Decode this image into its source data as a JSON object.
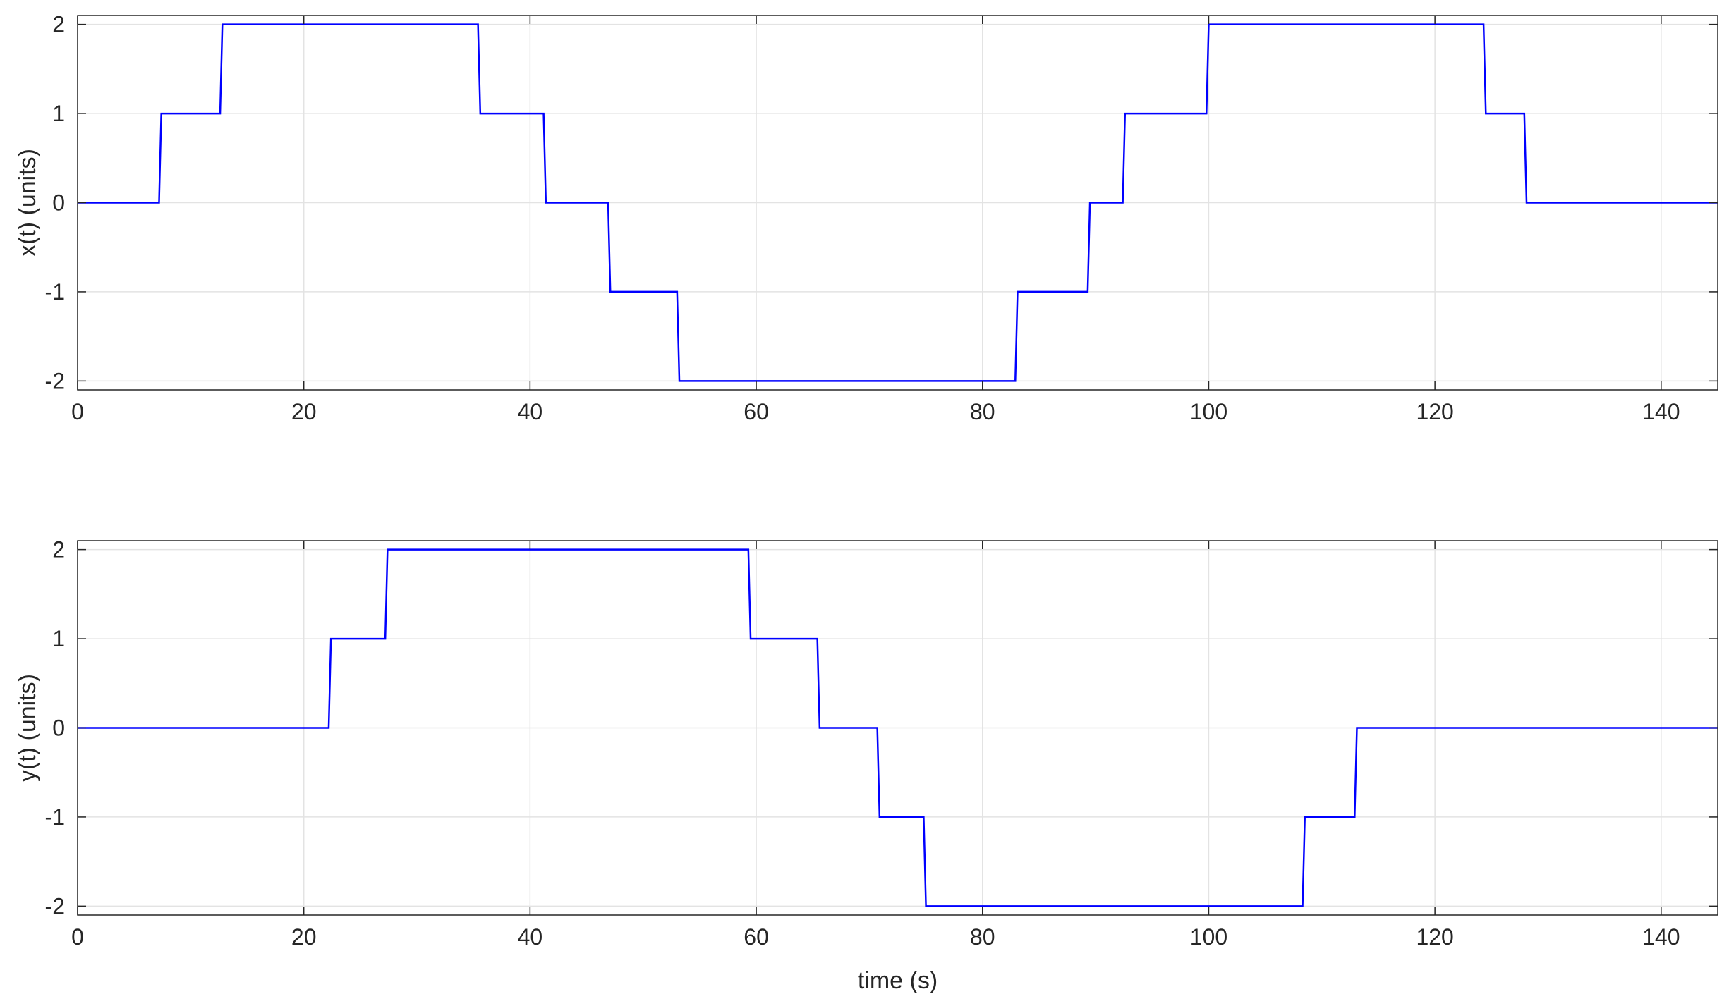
{
  "chart_data": [
    {
      "type": "line",
      "title": "",
      "xlabel": "",
      "ylabel": "x(t) (units)",
      "xlim": [
        0,
        145
      ],
      "ylim": [
        -2.1,
        2.1
      ],
      "xticks": [
        0,
        20,
        40,
        60,
        80,
        100,
        120,
        140
      ],
      "xtick_labels": [
        "0",
        "20",
        "40",
        "60",
        "80",
        "100",
        "120",
        "140"
      ],
      "yticks": [
        2,
        1,
        0,
        -1,
        -2
      ],
      "ytick_labels": [
        "2",
        "1",
        "0",
        "-1",
        "-2"
      ],
      "grid": true,
      "line_color": "#0000ff",
      "series": [
        {
          "x": [
            0,
            7.2,
            7.4,
            12.6,
            12.8,
            35.4,
            35.6,
            41.2,
            41.4,
            46.9,
            47.1,
            53.0,
            53.2,
            82.9,
            83.1,
            89.3,
            89.5,
            92.4,
            92.6,
            99.8,
            100.0,
            124.3,
            124.5,
            127.9,
            128.1,
            145
          ],
          "y": [
            0,
            0,
            1,
            1,
            2,
            2,
            1,
            1,
            0,
            0,
            -1,
            -1,
            -2,
            -2,
            -1,
            -1,
            0,
            0,
            1,
            1,
            2,
            2,
            1,
            1,
            0,
            0
          ]
        }
      ]
    },
    {
      "type": "line",
      "title": "",
      "xlabel": "time (s)",
      "ylabel": "y(t) (units)",
      "xlim": [
        0,
        145
      ],
      "ylim": [
        -2.1,
        2.1
      ],
      "xticks": [
        0,
        20,
        40,
        60,
        80,
        100,
        120,
        140
      ],
      "xtick_labels": [
        "0",
        "20",
        "40",
        "60",
        "80",
        "100",
        "120",
        "140"
      ],
      "yticks": [
        2,
        1,
        0,
        -1,
        -2
      ],
      "ytick_labels": [
        "2",
        "1",
        "0",
        "-1",
        "-2"
      ],
      "grid": true,
      "line_color": "#0000ff",
      "series": [
        {
          "x": [
            0,
            22.2,
            22.4,
            27.2,
            27.4,
            59.3,
            59.5,
            65.4,
            65.6,
            70.7,
            70.9,
            74.8,
            75.0,
            108.3,
            108.5,
            112.9,
            113.1,
            145
          ],
          "y": [
            0,
            0,
            1,
            1,
            2,
            2,
            1,
            1,
            0,
            0,
            -1,
            -1,
            -2,
            -2,
            -1,
            -1,
            0,
            0
          ]
        }
      ]
    }
  ]
}
